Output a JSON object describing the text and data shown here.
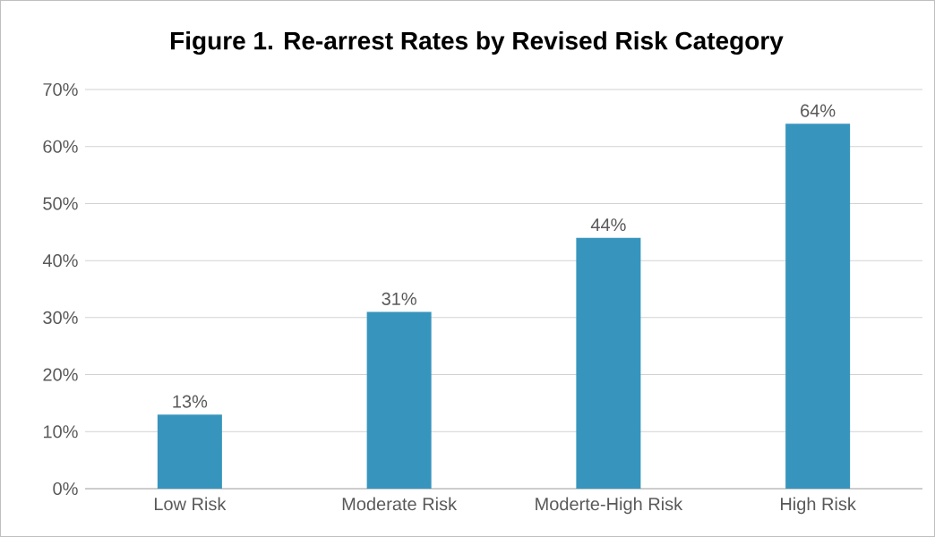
{
  "chart_data": {
    "type": "bar",
    "title": "Figure 1. Re-arrest Rates by Revised Risk Category",
    "categories": [
      "Low Risk",
      "Moderate Risk",
      "Moderte-High Risk",
      "High Risk"
    ],
    "values": [
      13,
      31,
      44,
      64
    ],
    "value_labels": [
      "13%",
      "31%",
      "44%",
      "64%"
    ],
    "color": "#3795bd",
    "ylim": [
      0,
      70
    ],
    "yticks": [
      {
        "value": 0,
        "label": "0%"
      },
      {
        "value": 10,
        "label": "10%"
      },
      {
        "value": 20,
        "label": "20%"
      },
      {
        "value": 30,
        "label": "30%"
      },
      {
        "value": 40,
        "label": "40%"
      },
      {
        "value": 50,
        "label": "50%"
      },
      {
        "value": 60,
        "label": "60%"
      },
      {
        "value": 70,
        "label": "70%"
      }
    ],
    "grid": "y"
  }
}
